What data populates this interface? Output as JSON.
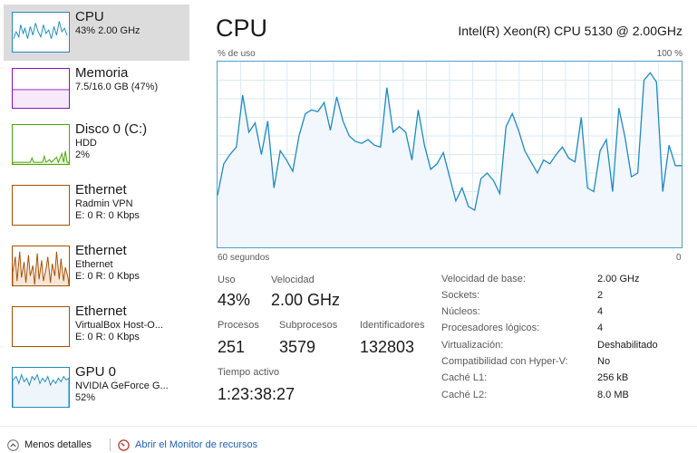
{
  "colors": {
    "cpu_accent": "#1f8ac0",
    "cpu_fill": "#f1f7fc",
    "memory_accent": "#8b12ae",
    "disk_accent": "#4da60c",
    "ethernet_accent": "#a74f01",
    "gpu_accent": "#1f8ac0",
    "link": "#1f5fb0"
  },
  "sidebar": {
    "items": [
      {
        "id": "cpu",
        "title": "CPU",
        "sub1": "43% 2.00 GHz",
        "sub2": "",
        "sub3": "",
        "icon": "cpu-graph"
      },
      {
        "id": "memory",
        "title": "Memoria",
        "sub1": "7.5/16.0 GB (47%)",
        "sub2": "",
        "sub3": "",
        "icon": "memory-graph"
      },
      {
        "id": "disk0",
        "title": "Disco 0 (C:)",
        "sub1": "HDD",
        "sub2": "2%",
        "sub3": "",
        "icon": "disk-graph"
      },
      {
        "id": "ethernet-radmin",
        "title": "Ethernet",
        "sub1": "Radmin VPN",
        "sub2": "E: 0 R: 0 Kbps",
        "sub3": "",
        "icon": "ethernet-graph"
      },
      {
        "id": "ethernet-main",
        "title": "Ethernet",
        "sub1": "Ethernet",
        "sub2": "E: 0 R: 0 Kbps",
        "sub3": "",
        "icon": "ethernet-graph"
      },
      {
        "id": "ethernet-vbox",
        "title": "Ethernet",
        "sub1": "VirtualBox Host-O...",
        "sub2": "E: 0 R: 0 Kbps",
        "sub3": "",
        "icon": "ethernet-graph"
      },
      {
        "id": "gpu0",
        "title": "GPU 0",
        "sub1": "NVIDIA GeForce G...",
        "sub2": "52%",
        "sub3": "",
        "icon": "gpu-graph"
      }
    ]
  },
  "main": {
    "title": "CPU",
    "cpu_name": "Intel(R) Xeon(R) CPU 5130 @ 2.00GHz",
    "graph": {
      "y_label": "% de uso",
      "y_max_label": "100 %",
      "x_label": "60 segundos",
      "x_min_label": "0",
      "usage_series": [
        28,
        45,
        50,
        54,
        82,
        62,
        67,
        50,
        68,
        32,
        52,
        47,
        41,
        60,
        72,
        74,
        73,
        78,
        63,
        81,
        68,
        60,
        57,
        56,
        58,
        55,
        54,
        86,
        62,
        65,
        62,
        47,
        74,
        55,
        42,
        45,
        51,
        38,
        25,
        32,
        22,
        20,
        37,
        40,
        36,
        29,
        65,
        72,
        63,
        52,
        46,
        40,
        47,
        45,
        50,
        54,
        48,
        46,
        70,
        32,
        30,
        52,
        58,
        30,
        75,
        59,
        38,
        40,
        90,
        94,
        89,
        30,
        55,
        44,
        44
      ],
      "series_name": "% de uso"
    },
    "stats": {
      "uso_label": "Uso",
      "uso_value": "43%",
      "velocidad_label": "Velocidad",
      "velocidad_value": "2.00 GHz",
      "procesos_label": "Procesos",
      "procesos_value": "251",
      "subprocesos_label": "Subprocesos",
      "subprocesos_value": "3579",
      "identificadores_label": "Identificadores",
      "identificadores_value": "132803",
      "tiempo_label": "Tiempo activo",
      "tiempo_value": "1:23:38:27"
    },
    "details": [
      {
        "label": "Velocidad de base:",
        "value": "2.00 GHz"
      },
      {
        "label": "Sockets:",
        "value": "2"
      },
      {
        "label": "Núcleos:",
        "value": "4"
      },
      {
        "label": "Procesadores lógicos:",
        "value": "4"
      },
      {
        "label": "Virtualización:",
        "value": "Deshabilitado"
      },
      {
        "label": "Compatibilidad con Hyper-V:",
        "value": "No"
      },
      {
        "label": "Caché L1:",
        "value": "256 kB"
      },
      {
        "label": "Caché L2:",
        "value": "8.0 MB"
      }
    ]
  },
  "footer": {
    "less_details": "Menos detalles",
    "resource_monitor": "Abrir el Monitor de recursos",
    "less_details_icon": "chevron-up-icon",
    "resource_monitor_icon": "resource-monitor-icon"
  }
}
